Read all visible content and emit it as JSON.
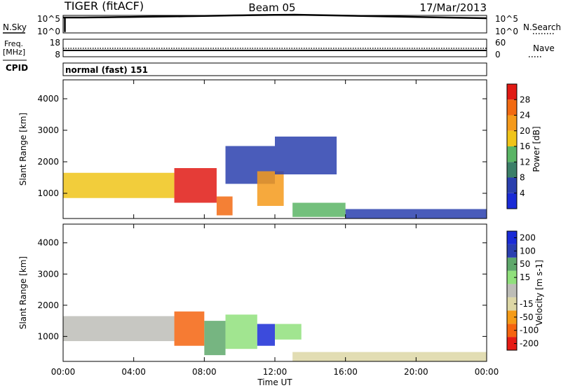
{
  "header": {
    "radar": "TIGER (fitACF)",
    "beam": "Beam 05",
    "date": "17/Mar/2013"
  },
  "noise_panel": {
    "left_label": "N.Sky",
    "right_label": "N.Search",
    "left_ticks": [
      "10^5",
      "10^0"
    ],
    "right_ticks": [
      "10^5",
      "10^0"
    ]
  },
  "freq_panel": {
    "left_label_line1": "Freq.",
    "left_label_line2": "[MHz]",
    "right_label": "Nave",
    "left_ticks": [
      "18",
      "8"
    ],
    "right_ticks": [
      "60",
      "0"
    ]
  },
  "cpid_panel": {
    "label": "CPID",
    "text": "normal (fast) 151"
  },
  "colors": {
    "power_scale": [
      "#1a2bd6",
      "#2a3fae",
      "#3b7f68",
      "#5ab565",
      "#f0c419",
      "#f59a1b",
      "#f26a12",
      "#e11a14"
    ],
    "velocity_scale": [
      "#e51b14",
      "#f5640f",
      "#f59b17",
      "#ddd7a6",
      "#bdbdb7",
      "#90e07c",
      "#5ea86b",
      "#2a3fb0",
      "#1a2bd6"
    ]
  },
  "chart_data": [
    {
      "type": "heatmap",
      "panel": "power",
      "ylabel": "Slant Range [km]",
      "y_ticks": [
        "1000",
        "2000",
        "3000",
        "4000"
      ],
      "ylim": [
        200,
        4600
      ],
      "xlim": [
        "00:00",
        "24:00"
      ],
      "colorbar_label": "Power [dB]",
      "colorbar_ticks": [
        "4",
        "8",
        "12",
        "16",
        "20",
        "24",
        "28"
      ],
      "colorbar_range": [
        0,
        32
      ],
      "features": [
        {
          "from": 0.0,
          "to": 6.3,
          "range_low": 850,
          "range_high": 1650,
          "value": 18
        },
        {
          "from": 6.3,
          "to": 8.7,
          "range_low": 700,
          "range_high": 1800,
          "value": 30
        },
        {
          "from": 8.7,
          "to": 9.6,
          "range_low": 300,
          "range_high": 900,
          "value": 26
        },
        {
          "from": 9.2,
          "to": 12.0,
          "range_low": 1300,
          "range_high": 2500,
          "value": 6
        },
        {
          "from": 11.0,
          "to": 12.5,
          "range_low": 600,
          "range_high": 1700,
          "value": 22
        },
        {
          "from": 12.0,
          "to": 15.5,
          "range_low": 1600,
          "range_high": 2800,
          "value": 4
        },
        {
          "from": 13.0,
          "to": 16.0,
          "range_low": 250,
          "range_high": 700,
          "value": 14
        },
        {
          "from": 16.0,
          "to": 24.0,
          "range_low": 200,
          "range_high": 500,
          "value": 6
        }
      ]
    },
    {
      "type": "heatmap",
      "panel": "velocity",
      "ylabel": "Slant Range [km]",
      "y_ticks": [
        "1000",
        "2000",
        "3000",
        "4000"
      ],
      "ylim": [
        200,
        4600
      ],
      "xlabel": "Time UT",
      "x_ticks": [
        "00:00",
        "04:00",
        "08:00",
        "12:00",
        "16:00",
        "20:00",
        "00:00"
      ],
      "colorbar_label": "Velocity [m s-1]",
      "colorbar_ticks": [
        "-200",
        "-100",
        "-50",
        "-15",
        "15",
        "50",
        "100",
        "200"
      ],
      "colorbar_range": [
        -250,
        250
      ],
      "features": [
        {
          "from": 0.0,
          "to": 6.3,
          "range_low": 850,
          "range_high": 1650,
          "value": 0
        },
        {
          "from": 6.3,
          "to": 8.0,
          "range_low": 700,
          "range_high": 1800,
          "value": -180
        },
        {
          "from": 8.0,
          "to": 9.2,
          "range_low": 400,
          "range_high": 1500,
          "value": 120
        },
        {
          "from": 9.2,
          "to": 11.0,
          "range_low": 600,
          "range_high": 1700,
          "value": 40
        },
        {
          "from": 11.0,
          "to": 12.0,
          "range_low": 700,
          "range_high": 1400,
          "value": 230
        },
        {
          "from": 12.0,
          "to": 13.5,
          "range_low": 900,
          "range_high": 1400,
          "value": 60
        },
        {
          "from": 13.0,
          "to": 24.0,
          "range_low": 200,
          "range_high": 500,
          "value": -80
        }
      ]
    }
  ]
}
